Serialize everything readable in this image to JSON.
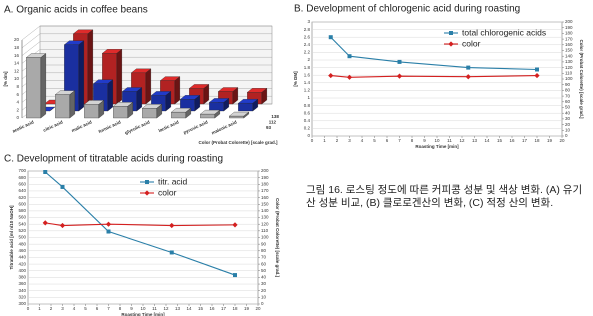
{
  "caption": "그림 16. 로스팅 정도에 따른 커피콩 성분 및 색상 변화. (A) 유기산 성분 비교, (B) 클로로겐산의 변화, (C) 적정 산의 변화.",
  "chart_data": [
    {
      "type": "bar3d",
      "title": "A. Organic acids in coffee beans",
      "ylabel": "[% dm]",
      "zlabel": "Color (Probat Colorette) [scale grad.]",
      "categories": [
        "acetic acid",
        "citric acid",
        "malic acid",
        "formic acid",
        "glycolic acid",
        "lactic acid",
        "pyruvic acid",
        "malonic acid"
      ],
      "series": [
        {
          "name": "138",
          "color": "#b22222",
          "values": [
            0,
            18,
            13,
            8,
            6,
            4,
            3.2,
            3
          ]
        },
        {
          "name": "112",
          "color": "#1a2fa0",
          "values": [
            0,
            17,
            7,
            5,
            4,
            3,
            2.2,
            2
          ]
        },
        {
          "name": "93",
          "color": "#a9a9a9",
          "values": [
            15.5,
            6,
            3.5,
            3,
            2.5,
            1.5,
            1,
            0.5
          ]
        }
      ],
      "ylim": [
        0,
        20
      ],
      "yticks": [
        0,
        2,
        4,
        6,
        8,
        10,
        12,
        14,
        16,
        18,
        20
      ],
      "grid": true
    },
    {
      "type": "line",
      "title": "B. Development of chlorogenic acid during roasting",
      "xlabel": "Roasting Time [min]",
      "ylabel": "[% DM]",
      "y2label": "Color (Probat Colorette) [scale grad.]",
      "x": [
        1.5,
        3,
        7,
        12.5,
        18
      ],
      "series": [
        {
          "name": "total  chlorogenic acids",
          "color": "#2a7fa8",
          "marker": "square",
          "values": [
            2.6,
            2.1,
            1.95,
            1.8,
            1.75
          ]
        },
        {
          "name": "color",
          "color": "#d42020",
          "marker": "diamond",
          "axis": "y2",
          "values": [
            106,
            103,
            105,
            104,
            106
          ]
        }
      ],
      "xlim": [
        0,
        20
      ],
      "xticks": [
        0,
        1,
        2,
        3,
        4,
        5,
        6,
        7,
        8,
        9,
        10,
        11,
        12,
        13,
        14,
        15,
        16,
        17,
        18,
        19,
        20
      ],
      "ylim": [
        0,
        3
      ],
      "yticks": [
        0,
        0.2,
        0.4,
        0.6,
        0.8,
        1,
        1.2,
        1.4,
        1.6,
        1.8,
        2,
        2.2,
        2.4,
        2.6,
        2.8,
        3
      ],
      "y2lim": [
        0,
        200
      ],
      "y2ticks": [
        0,
        10,
        20,
        30,
        40,
        50,
        60,
        70,
        80,
        90,
        100,
        110,
        120,
        130,
        140,
        150,
        160,
        170,
        180,
        190,
        200
      ],
      "grid": true,
      "legend": "upper right"
    },
    {
      "type": "line",
      "title": "C. Development of titratable acids during roasting",
      "xlabel": "Roasting Time [min]",
      "ylabel": "Titratable acid [ml n/10 NaOH]",
      "y2label": "Color (Probat Colorette) [scale grad.]",
      "x": [
        1.5,
        3,
        7,
        12.5,
        18
      ],
      "series": [
        {
          "name": "titr. acid",
          "color": "#2a7fa8",
          "marker": "square",
          "values": [
            697,
            652,
            518,
            455,
            387
          ]
        },
        {
          "name": "color",
          "color": "#d42020",
          "marker": "diamond",
          "axis": "y2",
          "values": [
            122,
            118,
            120,
            118,
            119
          ]
        }
      ],
      "xlim": [
        0,
        20
      ],
      "xticks": [
        0,
        1,
        2,
        3,
        4,
        5,
        6,
        7,
        8,
        9,
        10,
        11,
        12,
        13,
        14,
        15,
        16,
        17,
        18,
        19,
        20
      ],
      "ylim": [
        300,
        700
      ],
      "yticks": [
        300,
        320,
        340,
        360,
        380,
        400,
        420,
        440,
        460,
        480,
        500,
        520,
        540,
        560,
        580,
        600,
        620,
        640,
        660,
        680,
        700
      ],
      "y2lim": [
        0,
        200
      ],
      "y2ticks": [
        0,
        10,
        20,
        30,
        40,
        50,
        60,
        70,
        80,
        90,
        100,
        110,
        120,
        130,
        140,
        150,
        160,
        170,
        180,
        190,
        200
      ],
      "grid": true,
      "legend": "upper right"
    }
  ]
}
